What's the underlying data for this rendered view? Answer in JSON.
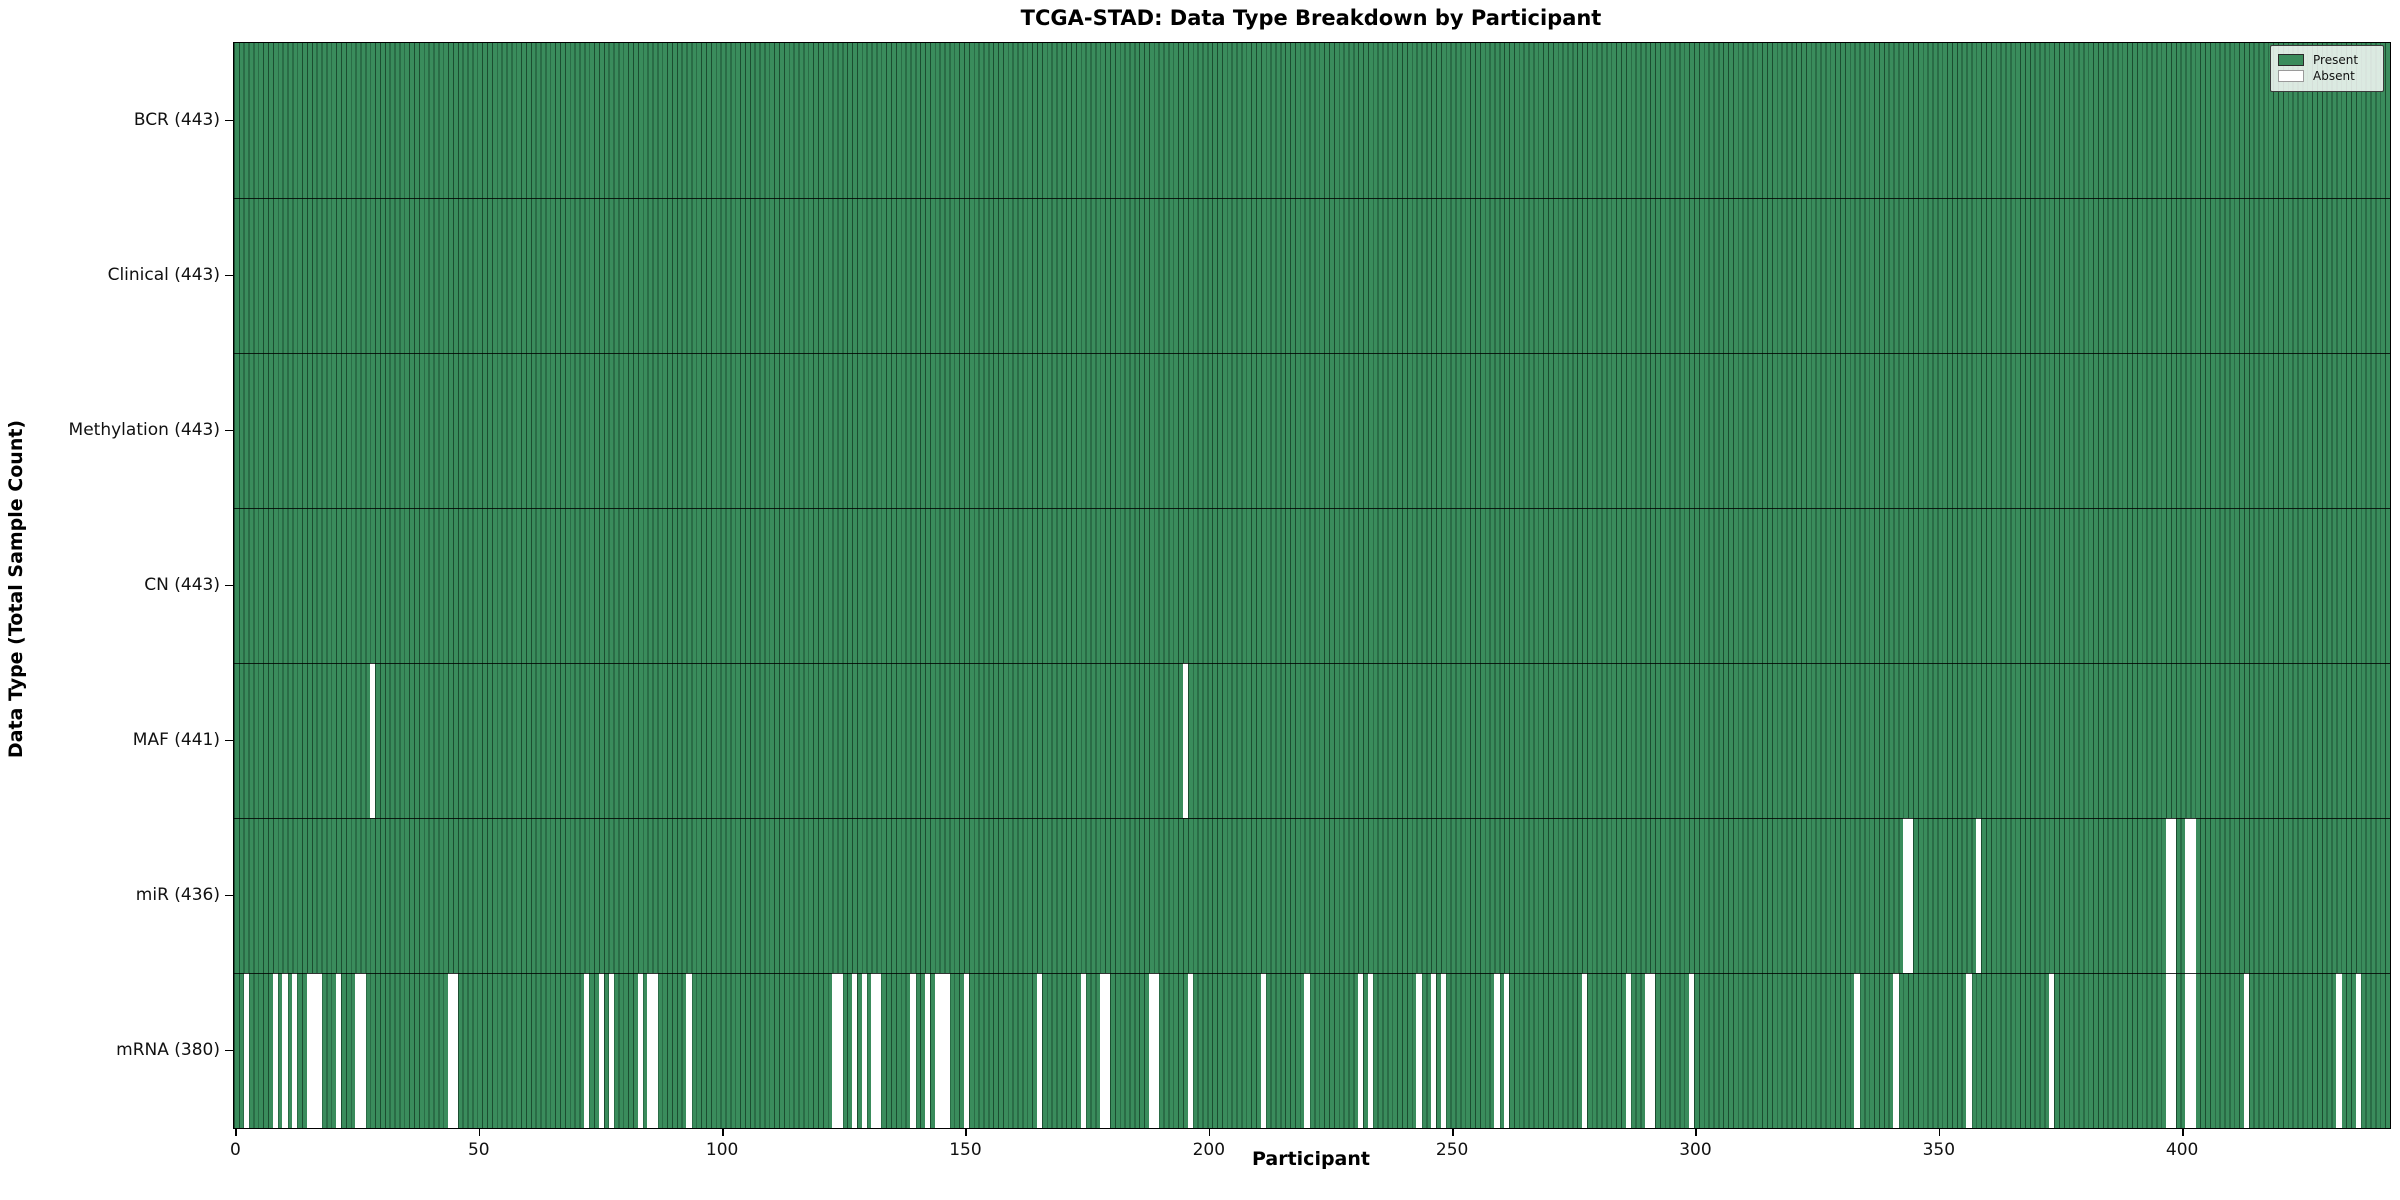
{
  "title": "TCGA-STAD: Data Type Breakdown by Participant",
  "legend": {
    "present_label": "Present",
    "absent_label": "Absent"
  },
  "colors": {
    "present": "#3a8c5c",
    "present_edge": "#1b4d30",
    "absent": "#ffffff",
    "axis": "#000000"
  },
  "chart_data": {
    "type": "heatmap",
    "title": "TCGA-STAD: Data Type Breakdown by Participant",
    "xlabel": "Participant",
    "ylabel": "Data Type (Total Sample Count)",
    "n_participants": 443,
    "xlim": [
      0,
      443
    ],
    "x_ticks": [
      0,
      50,
      100,
      150,
      200,
      250,
      300,
      350,
      400
    ],
    "legend_entries": [
      "Present",
      "Absent"
    ],
    "legend_position": "upper right",
    "grid": false,
    "rows": [
      {
        "label": "BCR (443)",
        "name": "BCR",
        "total": 443,
        "absent": []
      },
      {
        "label": "Clinical (443)",
        "name": "Clinical",
        "total": 443,
        "absent": []
      },
      {
        "label": "Methylation (443)",
        "name": "Methylation",
        "total": 443,
        "absent": []
      },
      {
        "label": "CN (443)",
        "name": "CN",
        "total": 443,
        "absent": []
      },
      {
        "label": "MAF (441)",
        "name": "MAF",
        "total": 441,
        "absent": [
          28,
          195
        ]
      },
      {
        "label": "miR (436)",
        "name": "miR",
        "total": 436,
        "absent": [
          343,
          344,
          358,
          397,
          398,
          401,
          402
        ]
      },
      {
        "label": "mRNA (380)",
        "name": "mRNA",
        "total": 380,
        "absent": [
          2,
          8,
          10,
          12,
          15,
          16,
          17,
          21,
          25,
          26,
          44,
          45,
          72,
          75,
          77,
          83,
          85,
          86,
          93,
          123,
          124,
          127,
          129,
          131,
          132,
          139,
          142,
          144,
          145,
          146,
          150,
          165,
          174,
          178,
          179,
          188,
          189,
          196,
          211,
          220,
          231,
          233,
          243,
          246,
          248,
          259,
          261,
          277,
          286,
          290,
          291,
          299,
          333,
          341,
          356,
          373,
          397,
          398,
          401,
          402,
          413,
          432,
          436
        ]
      }
    ]
  }
}
